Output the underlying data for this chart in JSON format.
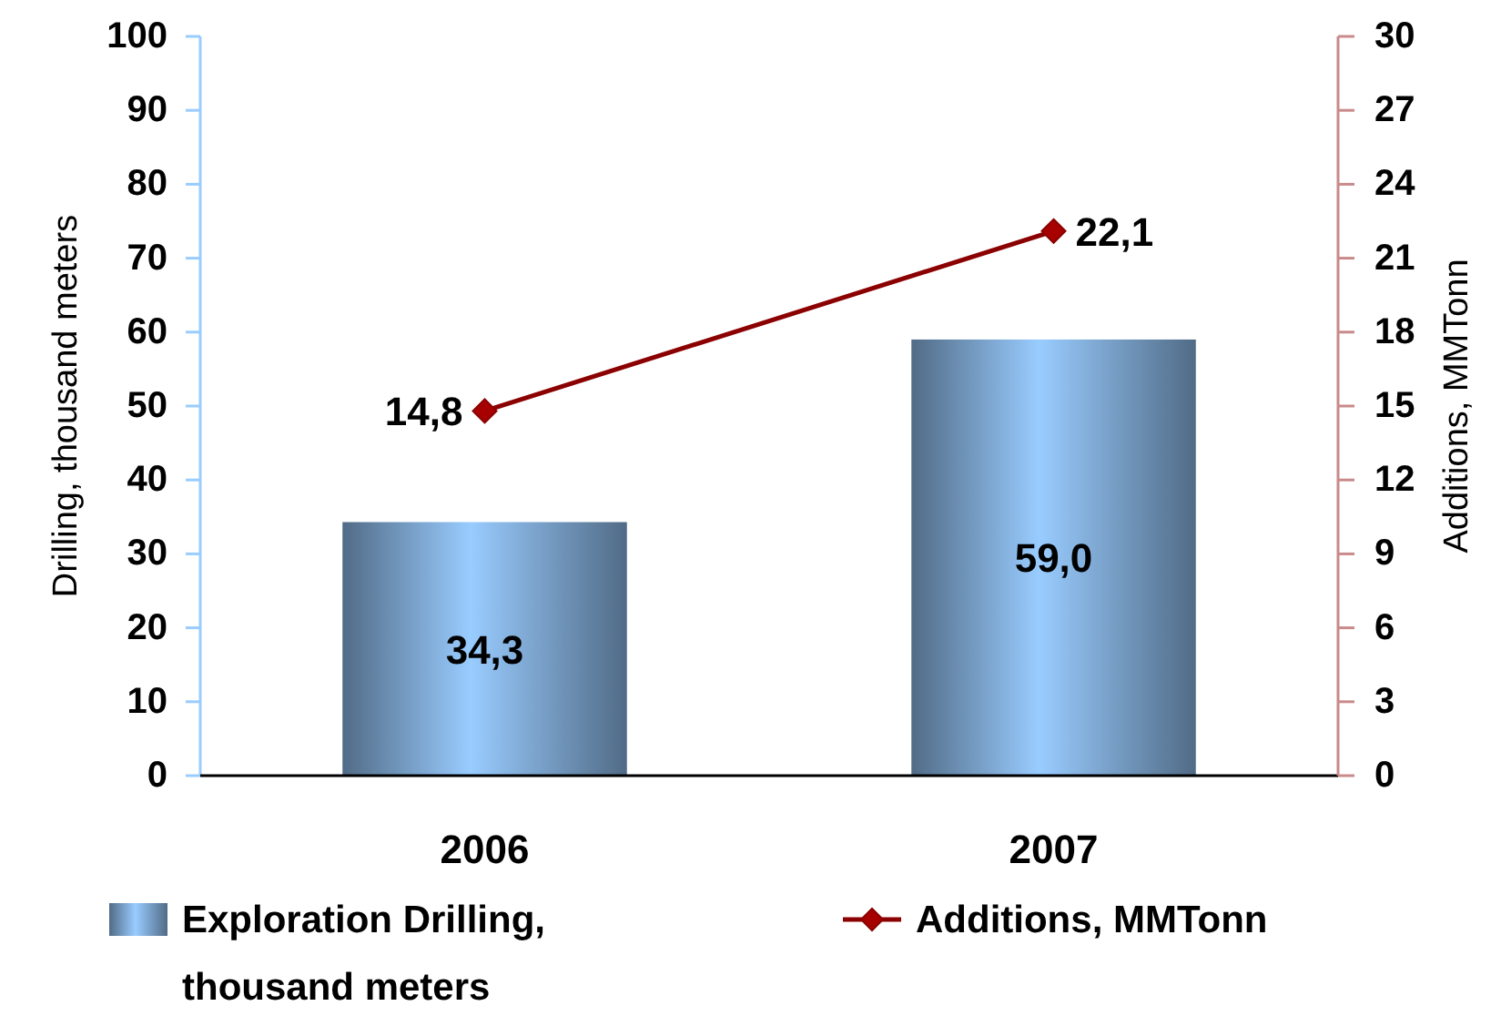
{
  "chart_data": {
    "type": "bar",
    "categories": [
      "2006",
      "2007"
    ],
    "series": [
      {
        "name": "Exploration Drilling, thousand meters",
        "color": "#99ccff",
        "values": [
          34.3,
          59.0
        ],
        "value_labels": [
          "34,3",
          "59,0"
        ]
      },
      {
        "name": "Additions, MMTonn",
        "type": "line",
        "axis": "y2",
        "color": "#8b0000",
        "values": [
          14.8,
          22.1
        ],
        "value_labels": [
          "14,8",
          "22,1"
        ]
      }
    ],
    "ylabel": "Drilling, thousand meters",
    "y2label": "Additions, MMTonn",
    "ylim": [
      0,
      100
    ],
    "yticks": [
      0,
      10,
      20,
      30,
      40,
      50,
      60,
      70,
      80,
      90,
      100
    ],
    "y2lim": [
      0,
      30
    ],
    "y2ticks": [
      0,
      3,
      6,
      9,
      12,
      15,
      18,
      21,
      24,
      27,
      30
    ],
    "marker": "diamond",
    "legend": "bottom"
  }
}
